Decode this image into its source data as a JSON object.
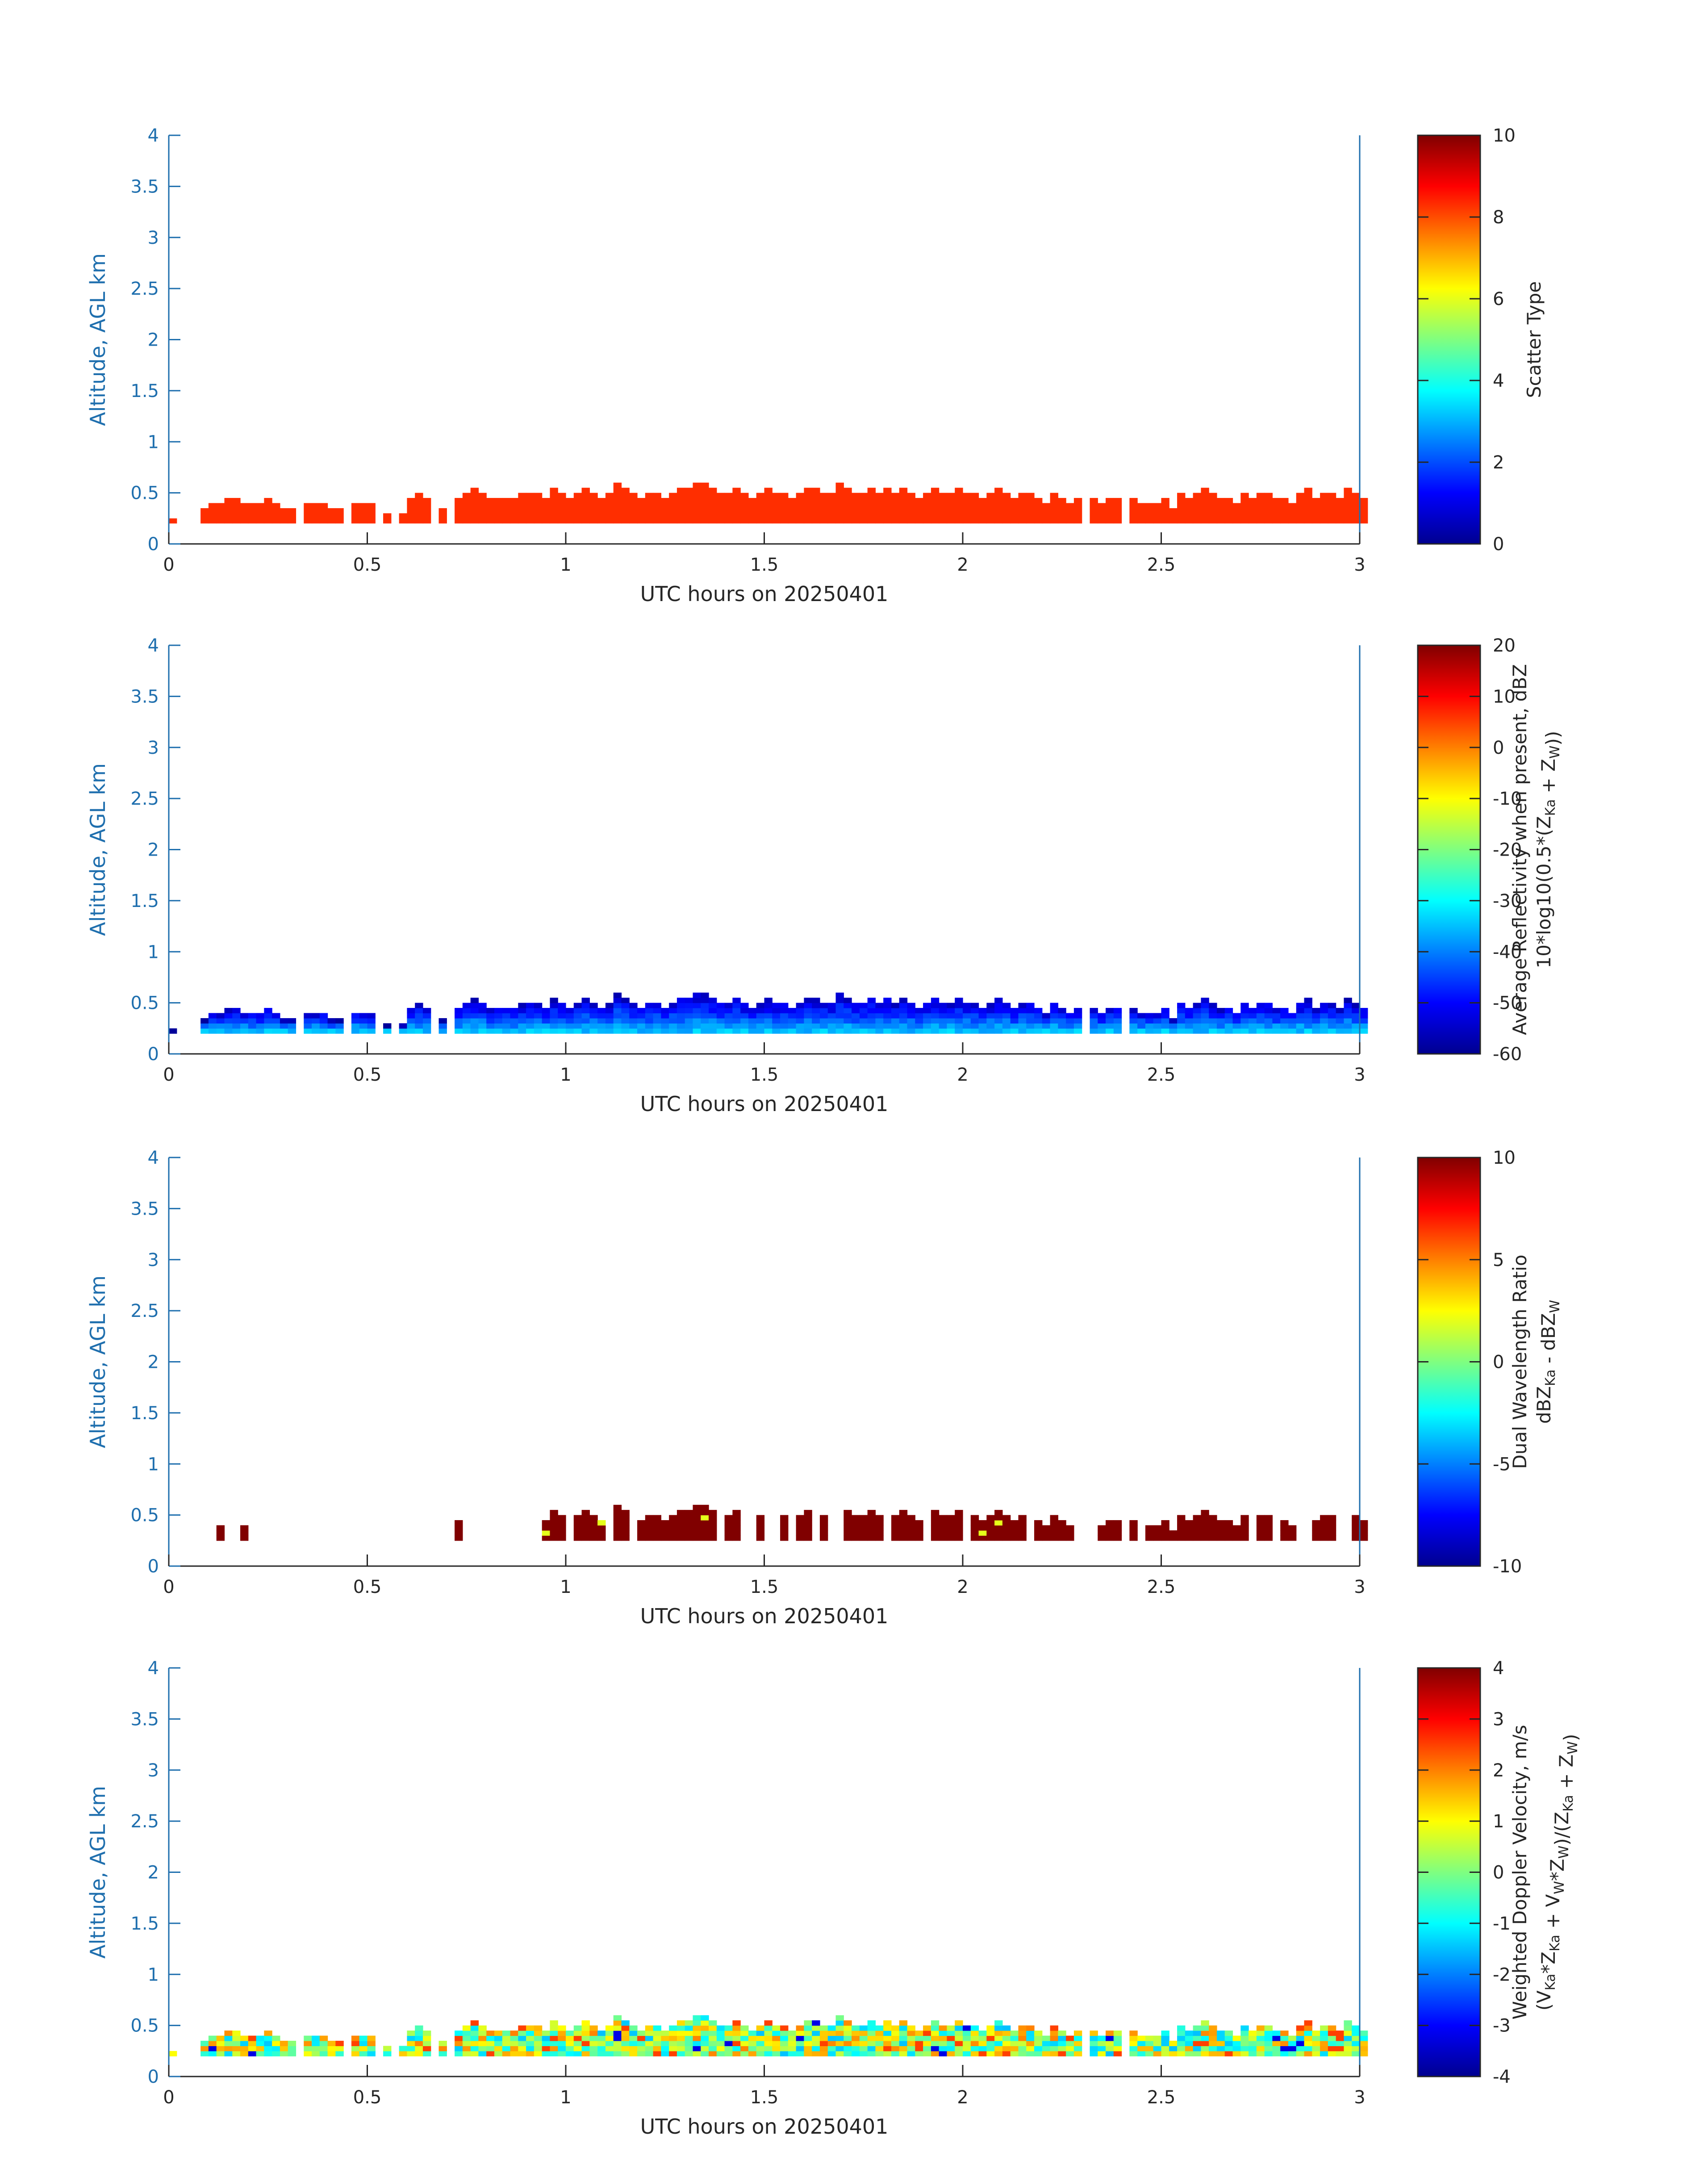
{
  "chart_data": [
    {
      "type": "heatmap",
      "xlabel": "UTC hours on 20250401",
      "ylabel": "Altitude, AGL km",
      "xlim": [
        0,
        3
      ],
      "ylim": [
        0,
        4
      ],
      "xticks": [
        "0",
        "0.5",
        "1",
        "1.5",
        "2",
        "2.5",
        "3"
      ],
      "yticks": [
        "0",
        "0.5",
        "1",
        "1.5",
        "2",
        "2.5",
        "3",
        "3.5",
        "4"
      ],
      "colorbar": {
        "label_lines": [
          "Scatter Type"
        ],
        "range": [
          0,
          10
        ],
        "ticks": [
          "0",
          "2",
          "4",
          "6",
          "8",
          "10"
        ],
        "colormap": "jet"
      },
      "field": "scatter",
      "echo_base_km": 0.2,
      "cell_value": 8.3
    },
    {
      "type": "heatmap",
      "xlabel": "UTC hours on 20250401",
      "ylabel": "Altitude, AGL km",
      "xlim": [
        0,
        3
      ],
      "ylim": [
        0,
        4
      ],
      "xticks": [
        "0",
        "0.5",
        "1",
        "1.5",
        "2",
        "2.5",
        "3"
      ],
      "yticks": [
        "0",
        "0.5",
        "1",
        "1.5",
        "2",
        "2.5",
        "3",
        "3.5",
        "4"
      ],
      "colorbar": {
        "label_lines": [
          "Average Reflectivity when present, dBZ",
          "10*log10(0.5*(Z_Ka + Z_W))"
        ],
        "range": [
          -60,
          20
        ],
        "ticks": [
          "-60",
          "-50",
          "-40",
          "-30",
          "-20",
          "-10",
          "0",
          "10",
          "20"
        ],
        "colormap": "jet"
      },
      "field": "reflectivity",
      "value_range_observed": [
        -58,
        -30
      ]
    },
    {
      "type": "heatmap",
      "xlabel": "UTC hours on 20250401",
      "ylabel": "Altitude, AGL km",
      "xlim": [
        0,
        3
      ],
      "ylim": [
        0,
        4
      ],
      "xticks": [
        "0",
        "0.5",
        "1",
        "1.5",
        "2",
        "2.5",
        "3"
      ],
      "yticks": [
        "0",
        "0.5",
        "1",
        "1.5",
        "2",
        "2.5",
        "3",
        "3.5",
        "4"
      ],
      "colorbar": {
        "label_lines": [
          "Dual Wavelength Ratio",
          "dBZ_Ka - dBZ_W"
        ],
        "range": [
          -10,
          10
        ],
        "ticks": [
          "-10",
          "-5",
          "0",
          "5",
          "10"
        ],
        "colormap": "jet"
      },
      "field": "dwr",
      "cell_value": 10
    },
    {
      "type": "heatmap",
      "xlabel": "UTC hours on 20250401",
      "ylabel": "Altitude, AGL km",
      "xlim": [
        0,
        3
      ],
      "ylim": [
        0,
        4
      ],
      "xticks": [
        "0",
        "0.5",
        "1",
        "1.5",
        "2",
        "2.5",
        "3"
      ],
      "yticks": [
        "0",
        "0.5",
        "1",
        "1.5",
        "2",
        "2.5",
        "3",
        "3.5",
        "4"
      ],
      "colorbar": {
        "label_lines": [
          "Weighted Doppler Velocity, m/s",
          "(V_Ka*Z_Ka + V_W*Z_W)/(Z_Ka + Z_W)"
        ],
        "range": [
          -4,
          4
        ],
        "ticks": [
          "-4",
          "-3",
          "-2",
          "-1",
          "0",
          "1",
          "2",
          "3",
          "4"
        ],
        "colormap": "jet"
      },
      "field": "velocity",
      "value_range_observed": [
        -3.5,
        2.5
      ]
    }
  ],
  "echo_columns": {
    "bin_width_hours": 0.02,
    "top_km": [
      0.25,
      0,
      0,
      0,
      0.35,
      0.4,
      0.4,
      0.45,
      0.45,
      0.4,
      0.4,
      0.4,
      0.45,
      0.4,
      0.35,
      0.35,
      0,
      0.4,
      0.4,
      0.4,
      0.35,
      0.35,
      0,
      0.4,
      0.4,
      0.4,
      0,
      0.3,
      0,
      0.3,
      0.45,
      0.5,
      0.45,
      0,
      0.35,
      0,
      0.45,
      0.5,
      0.55,
      0.5,
      0.45,
      0.45,
      0.45,
      0.45,
      0.5,
      0.5,
      0.5,
      0.45,
      0.55,
      0.5,
      0.45,
      0.5,
      0.55,
      0.5,
      0.45,
      0.5,
      0.6,
      0.55,
      0.5,
      0.45,
      0.5,
      0.5,
      0.45,
      0.5,
      0.55,
      0.55,
      0.6,
      0.6,
      0.55,
      0.5,
      0.5,
      0.55,
      0.5,
      0.45,
      0.5,
      0.55,
      0.5,
      0.5,
      0.45,
      0.5,
      0.55,
      0.55,
      0.5,
      0.5,
      0.6,
      0.55,
      0.5,
      0.5,
      0.55,
      0.5,
      0.55,
      0.5,
      0.55,
      0.5,
      0.45,
      0.5,
      0.55,
      0.5,
      0.5,
      0.55,
      0.5,
      0.5,
      0.45,
      0.5,
      0.55,
      0.5,
      0.45,
      0.5,
      0.5,
      0.45,
      0.4,
      0.5,
      0.45,
      0.4,
      0.45,
      0,
      0.45,
      0.4,
      0.45,
      0.45,
      0,
      0.45,
      0.4,
      0.4,
      0.4,
      0.45,
      0.35,
      0.5,
      0.45,
      0.5,
      0.55,
      0.5,
      0.45,
      0.45,
      0.4,
      0.5,
      0.45,
      0.5,
      0.5,
      0.45,
      0.45,
      0.4,
      0.5,
      0.55,
      0.45,
      0.5,
      0.5,
      0.45,
      0.55,
      0.5,
      0.45
    ]
  }
}
